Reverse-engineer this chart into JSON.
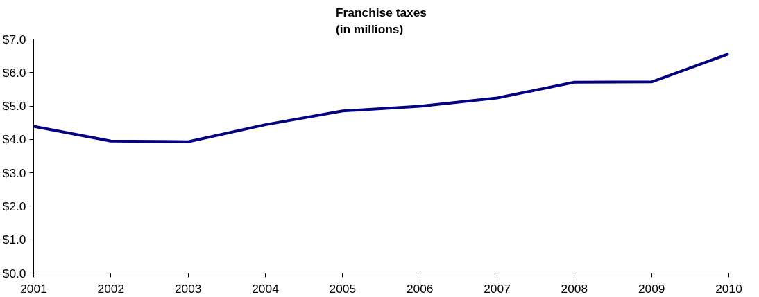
{
  "chart_data": {
    "type": "line",
    "title": "Franchise taxes\n(in millions)",
    "categories": [
      "2001",
      "2002",
      "2003",
      "2004",
      "2005",
      "2006",
      "2007",
      "2008",
      "2009",
      "2010"
    ],
    "series": [
      {
        "color": "#000080",
        "values": [
          4.39,
          3.95,
          3.93,
          4.44,
          4.85,
          4.99,
          5.24,
          5.71,
          5.72,
          6.56
        ]
      }
    ],
    "ylim": [
      0,
      7
    ],
    "yticks": [
      {
        "value": 0,
        "label": "$0.0"
      },
      {
        "value": 1,
        "label": "$1.0"
      },
      {
        "value": 2,
        "label": "$2.0"
      },
      {
        "value": 3,
        "label": "$3.0"
      },
      {
        "value": 4,
        "label": "$4.0"
      },
      {
        "value": 5,
        "label": "$5.0"
      },
      {
        "value": 6,
        "label": "$6.0"
      },
      {
        "value": 7,
        "label": "$7.0"
      }
    ],
    "grid": false,
    "marker": "none",
    "line_style": "solid"
  }
}
